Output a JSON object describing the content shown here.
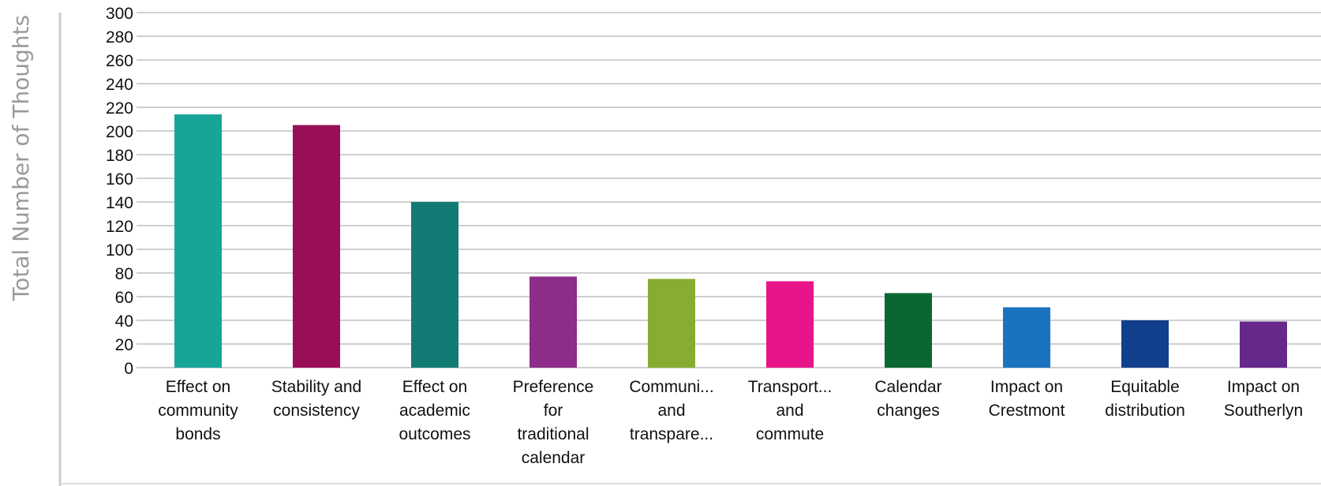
{
  "chart_data": {
    "type": "bar",
    "title": "",
    "xlabel": "",
    "ylabel": "Total Number of Thoughts",
    "ylim": [
      0,
      300
    ],
    "yticks": [
      0,
      20,
      40,
      60,
      80,
      100,
      120,
      140,
      160,
      180,
      200,
      220,
      240,
      260,
      280,
      300
    ],
    "grid": true,
    "legend": "none",
    "categories": [
      [
        "Effect on",
        "community",
        "bonds"
      ],
      [
        "Stability and",
        "consistency"
      ],
      [
        "Effect on",
        "academic",
        "outcomes"
      ],
      [
        "Preference",
        "for",
        "traditional",
        "calendar"
      ],
      [
        "Communi...",
        "and",
        "transpare..."
      ],
      [
        "Transport...",
        "and",
        "commute"
      ],
      [
        "Calendar",
        "changes"
      ],
      [
        "Impact on",
        "Crestmont"
      ],
      [
        "Equitable",
        "distribution"
      ],
      [
        "Impact on",
        "Southerlyn"
      ]
    ],
    "values": [
      214,
      205,
      140,
      77,
      75,
      73,
      63,
      51,
      40,
      39
    ],
    "colors": [
      "#17a598",
      "#990f57",
      "#127b74",
      "#8e2d8a",
      "#86ad30",
      "#e8158a",
      "#0b6732",
      "#1b72bf",
      "#123f8d",
      "#66288b"
    ],
    "gridline_color": "#cfcfcf",
    "axis_color": "#cfcfcf"
  }
}
